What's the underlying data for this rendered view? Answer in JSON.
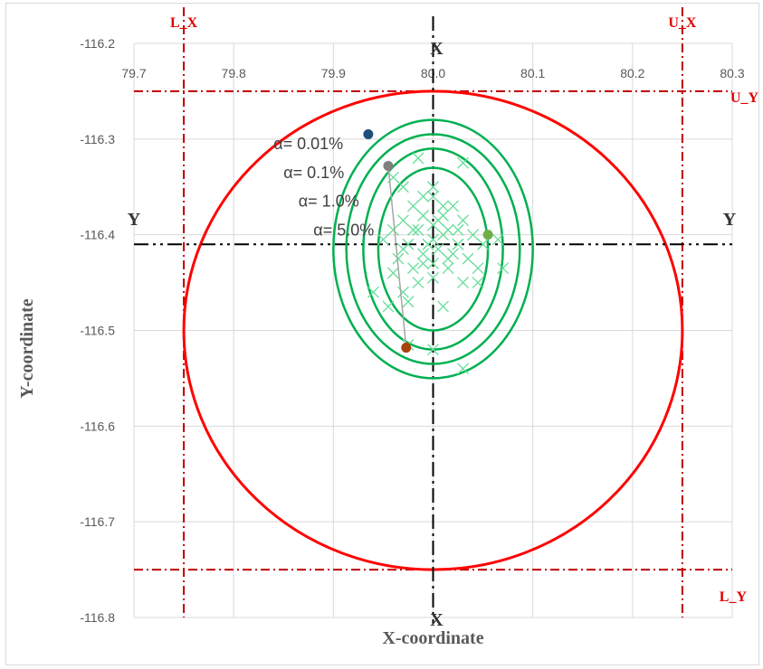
{
  "chart_data": {
    "type": "scatter",
    "xlabel": "X-coordinate",
    "ylabel": "Y-coordinate",
    "xlim": [
      79.7,
      80.3
    ],
    "ylim": [
      -116.8,
      -116.2
    ],
    "x_ticks": [
      "79.7",
      "79.8",
      "79.9",
      "80.0",
      "80.1",
      "80.2",
      "80.3"
    ],
    "y_ticks": [
      "-116.2",
      "-116.3",
      "-116.4",
      "-116.5",
      "-116.6",
      "-116.7",
      "-116.8"
    ],
    "grid": true,
    "colors": {
      "tolerance_circle": "#ff0000",
      "confidence_ellipses": "#00b050",
      "points": "#66dd99",
      "bounds": "#c00000",
      "centerlines": "#000000"
    },
    "bounds": [
      {
        "label": "L_X",
        "axis": "x",
        "value": 79.75
      },
      {
        "label": "U_X",
        "axis": "x",
        "value": 80.25
      },
      {
        "label": "U_Y",
        "axis": "y",
        "value": -116.25
      },
      {
        "label": "L_Y",
        "axis": "y",
        "value": -116.75
      }
    ],
    "centerlines": {
      "vertical": {
        "label": "X",
        "value": 80.0
      },
      "horizontal": {
        "label": "Y",
        "value": -116.41
      }
    },
    "tolerance_circle": {
      "cx": 80.0,
      "cy": -116.5,
      "r": 0.25
    },
    "ellipses": [
      {
        "alpha": "α= 5.0%",
        "cx": 80.0,
        "cy": -116.415,
        "rx": 0.055,
        "ry": 0.085
      },
      {
        "alpha": "α= 1.0%",
        "cx": 80.0,
        "cy": -116.415,
        "rx": 0.07,
        "ry": 0.105
      },
      {
        "alpha": "α= 0.1%",
        "cx": 80.0,
        "cy": -116.415,
        "rx": 0.087,
        "ry": 0.12
      },
      {
        "alpha": "α= 0.01%",
        "cx": 80.0,
        "cy": -116.415,
        "rx": 0.1,
        "ry": 0.135
      }
    ],
    "markers": [
      {
        "x": 79.935,
        "y": -116.295,
        "color": "#1f4e79"
      },
      {
        "x": 79.955,
        "y": -116.328,
        "color": "#7f7f7f"
      },
      {
        "x": 80.055,
        "y": -116.4,
        "color": "#70ad47"
      },
      {
        "x": 79.973,
        "y": -116.518,
        "color": "#a9410a"
      }
    ],
    "annotations": [
      {
        "text": "α= 0.01%",
        "x": 79.84,
        "y": -116.305
      },
      {
        "text": "α= 0.1%",
        "x": 79.85,
        "y": -116.335
      },
      {
        "text": "α= 1.0%",
        "x": 79.865,
        "y": -116.365
      },
      {
        "text": "α= 5.0%",
        "x": 79.88,
        "y": -116.395
      }
    ],
    "points": [
      {
        "x": 80.0,
        "y": -116.36
      },
      {
        "x": 79.98,
        "y": -116.37
      },
      {
        "x": 80.02,
        "y": -116.37
      },
      {
        "x": 79.99,
        "y": -116.38
      },
      {
        "x": 80.01,
        "y": -116.38
      },
      {
        "x": 79.97,
        "y": -116.385
      },
      {
        "x": 80.03,
        "y": -116.385
      },
      {
        "x": 80.0,
        "y": -116.39
      },
      {
        "x": 79.985,
        "y": -116.395
      },
      {
        "x": 80.015,
        "y": -116.395
      },
      {
        "x": 79.96,
        "y": -116.395
      },
      {
        "x": 80.04,
        "y": -116.4
      },
      {
        "x": 80.0,
        "y": -116.405
      },
      {
        "x": 79.975,
        "y": -116.41
      },
      {
        "x": 80.025,
        "y": -116.41
      },
      {
        "x": 80.005,
        "y": -116.415
      },
      {
        "x": 79.99,
        "y": -116.42
      },
      {
        "x": 80.02,
        "y": -116.42
      },
      {
        "x": 79.965,
        "y": -116.425
      },
      {
        "x": 80.035,
        "y": -116.425
      },
      {
        "x": 80.0,
        "y": -116.43
      },
      {
        "x": 79.98,
        "y": -116.435
      },
      {
        "x": 80.015,
        "y": -116.435
      },
      {
        "x": 80.045,
        "y": -116.435
      },
      {
        "x": 79.96,
        "y": -116.44
      },
      {
        "x": 80.0,
        "y": -116.445
      },
      {
        "x": 79.985,
        "y": -116.45
      },
      {
        "x": 80.03,
        "y": -116.45
      },
      {
        "x": 79.95,
        "y": -116.405
      },
      {
        "x": 80.05,
        "y": -116.41
      },
      {
        "x": 80.01,
        "y": -116.37
      },
      {
        "x": 79.99,
        "y": -116.36
      },
      {
        "x": 79.97,
        "y": -116.35
      },
      {
        "x": 80.0,
        "y": -116.35
      },
      {
        "x": 79.96,
        "y": -116.34
      },
      {
        "x": 80.03,
        "y": -116.325
      },
      {
        "x": 79.985,
        "y": -116.32
      },
      {
        "x": 80.07,
        "y": -116.435
      },
      {
        "x": 80.065,
        "y": -116.405
      },
      {
        "x": 80.045,
        "y": -116.45
      },
      {
        "x": 79.97,
        "y": -116.46
      },
      {
        "x": 79.975,
        "y": -116.47
      },
      {
        "x": 79.94,
        "y": -116.46
      },
      {
        "x": 79.955,
        "y": -116.475
      },
      {
        "x": 80.01,
        "y": -116.475
      },
      {
        "x": 79.975,
        "y": -116.515
      },
      {
        "x": 80.0,
        "y": -116.52
      },
      {
        "x": 80.03,
        "y": -116.54
      },
      {
        "x": 79.98,
        "y": -116.395
      },
      {
        "x": 80.01,
        "y": -116.4
      },
      {
        "x": 79.995,
        "y": -116.41
      },
      {
        "x": 80.015,
        "y": -116.425
      },
      {
        "x": 79.97,
        "y": -116.415
      },
      {
        "x": 80.025,
        "y": -116.395
      },
      {
        "x": 79.99,
        "y": -116.43
      },
      {
        "x": 80.005,
        "y": -116.385
      }
    ]
  }
}
